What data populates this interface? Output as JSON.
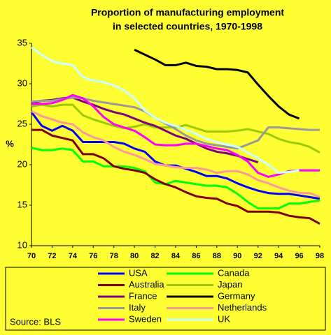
{
  "chart_data": {
    "type": "line",
    "title": [
      "Proportion of manufacturing employment",
      "in selected countries, 1970-1998"
    ],
    "y_label": "%",
    "source": "Source: BLS",
    "x": [
      70,
      71,
      72,
      73,
      74,
      75,
      76,
      77,
      78,
      79,
      80,
      81,
      82,
      83,
      84,
      85,
      86,
      87,
      88,
      89,
      90,
      91,
      92,
      93,
      94,
      95,
      96,
      97,
      98
    ],
    "xlim": [
      70,
      98
    ],
    "xticks": [
      70,
      72,
      74,
      76,
      78,
      80,
      82,
      84,
      86,
      88,
      90,
      92,
      94,
      96,
      98
    ],
    "ylim": [
      10,
      35
    ],
    "yticks": [
      10,
      15,
      20,
      25,
      30,
      35
    ],
    "grid": false,
    "legend": "bottom",
    "series": [
      {
        "name": "USA",
        "color": "#0000ff",
        "values": [
          26.5,
          24.8,
          24.2,
          24.8,
          24.2,
          22.8,
          22.8,
          22.8,
          22.8,
          22.6,
          22.0,
          21.6,
          20.4,
          19.9,
          19.9,
          19.5,
          19.1,
          18.6,
          18.6,
          18.3,
          17.7,
          17.2,
          16.8,
          16.5,
          16.4,
          16.4,
          16.2,
          16.0,
          15.8
        ]
      },
      {
        "name": "Canada",
        "color": "#00ff00",
        "values": [
          22.1,
          21.8,
          21.8,
          22.0,
          21.8,
          20.4,
          20.4,
          19.8,
          19.8,
          19.8,
          19.6,
          19.2,
          17.8,
          17.6,
          18.0,
          17.8,
          17.6,
          17.4,
          17.4,
          17.2,
          16.4,
          15.4,
          14.6,
          14.6,
          14.6,
          15.2,
          15.2,
          15.4,
          15.6
        ]
      },
      {
        "name": "Australia",
        "color": "#800000",
        "values": [
          24.3,
          24.3,
          23.6,
          23.3,
          23.0,
          21.3,
          21.3,
          20.8,
          19.8,
          19.5,
          19.3,
          19.0,
          18.2,
          17.6,
          17.2,
          16.6,
          16.1,
          15.9,
          15.8,
          15.2,
          14.9,
          14.2,
          14.2,
          14.2,
          14.1,
          13.7,
          13.5,
          13.4,
          12.7
        ]
      },
      {
        "name": "Japan",
        "color": "#99cc00",
        "values": [
          27.2,
          27.4,
          27.2,
          27.4,
          27.4,
          26.1,
          25.6,
          25.2,
          24.8,
          24.5,
          24.7,
          25.0,
          24.6,
          24.6,
          24.6,
          24.9,
          24.5,
          24.1,
          24.1,
          24.1,
          24.2,
          24.4,
          24.1,
          23.8,
          23.2,
          22.8,
          22.6,
          22.2,
          21.5
        ]
      },
      {
        "name": "France",
        "color": "#800080",
        "values": [
          27.6,
          27.9,
          28.0,
          28.2,
          28.3,
          27.8,
          27.4,
          26.9,
          26.5,
          26.2,
          25.7,
          25.2,
          24.8,
          24.2,
          23.6,
          23.2,
          22.6,
          22.0,
          21.6,
          21.4,
          21.1,
          20.7,
          20.3,
          null,
          null,
          null,
          null,
          null,
          null
        ]
      },
      {
        "name": "Germany",
        "color": "#000000",
        "values": [
          null,
          null,
          null,
          null,
          null,
          null,
          null,
          null,
          null,
          null,
          34.2,
          33.6,
          33.0,
          32.3,
          32.3,
          32.6,
          32.2,
          32.1,
          31.8,
          31.8,
          31.7,
          31.4,
          29.9,
          28.5,
          27.2,
          26.2,
          25.7,
          null,
          null
        ]
      },
      {
        "name": "Italy",
        "color": "#999999",
        "values": [
          27.8,
          27.9,
          27.9,
          28.1,
          28.3,
          28.2,
          27.9,
          27.7,
          27.5,
          27.3,
          27.1,
          26.6,
          25.8,
          25.1,
          24.4,
          23.6,
          23.0,
          22.6,
          22.4,
          22.2,
          22.0,
          22.5,
          23.0,
          24.6,
          24.6,
          24.5,
          24.4,
          24.3,
          24.3
        ]
      },
      {
        "name": "Netherlands",
        "color": "#ff9999",
        "values": [
          26.6,
          26.0,
          25.6,
          25.2,
          25.0,
          24.0,
          23.4,
          23.0,
          22.2,
          21.6,
          21.2,
          20.7,
          20.1,
          19.9,
          19.7,
          19.6,
          19.6,
          19.4,
          19.0,
          19.2,
          19.2,
          18.8,
          18.1,
          17.7,
          17.2,
          16.8,
          16.5,
          16.5,
          16.0
        ]
      },
      {
        "name": "Sweden",
        "color": "#ff00ff",
        "values": [
          27.5,
          27.5,
          27.6,
          28.0,
          28.6,
          28.2,
          27.2,
          25.9,
          25.0,
          24.6,
          24.2,
          23.4,
          22.5,
          22.4,
          22.4,
          22.6,
          22.6,
          22.3,
          22.0,
          21.8,
          21.2,
          20.4,
          19.0,
          18.5,
          18.8,
          19.2,
          19.3,
          19.3,
          19.3
        ]
      },
      {
        "name": "UK",
        "color": "#ccffff",
        "values": [
          34.5,
          33.6,
          32.8,
          32.5,
          32.3,
          30.8,
          30.4,
          30.2,
          29.8,
          29.2,
          28.2,
          26.7,
          25.8,
          25.2,
          24.8,
          24.3,
          23.8,
          23.2,
          22.8,
          22.5,
          22.2,
          21.5,
          20.8,
          20.0,
          19.0,
          19.1,
          19.3,
          null,
          null
        ]
      }
    ]
  }
}
